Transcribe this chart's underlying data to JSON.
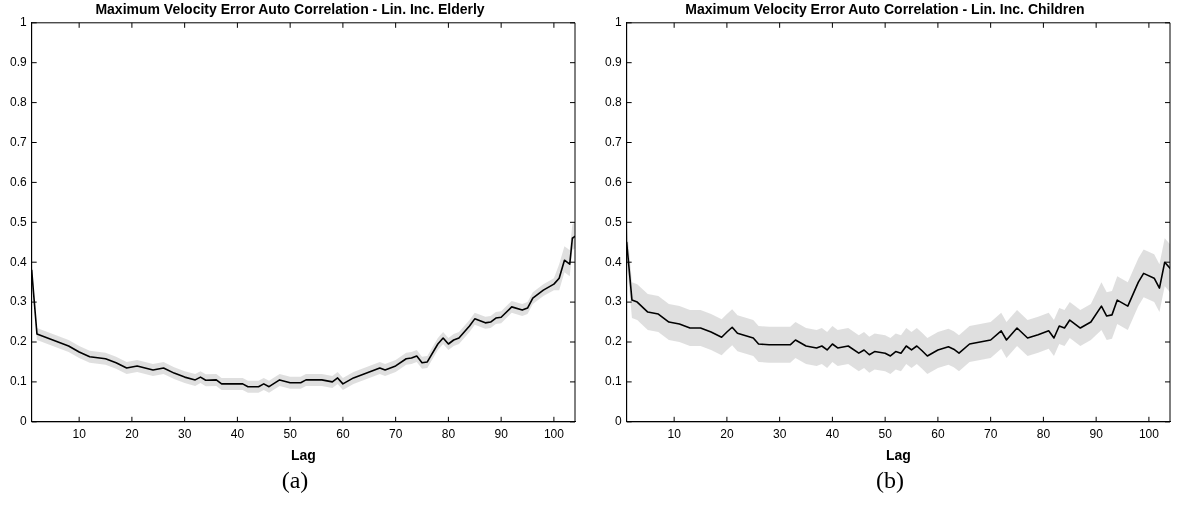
{
  "chart_data": [
    {
      "type": "line",
      "title": "Maximum Velocity Error Auto Correlation - Lin. Inc. Elderly",
      "xlabel": "Lag",
      "annotations": [
        "(a)"
      ],
      "xlim": [
        1,
        104
      ],
      "xticks": [
        10,
        20,
        30,
        40,
        50,
        60,
        70,
        80,
        90,
        100
      ],
      "ylim": [
        0,
        1
      ],
      "yticks": [
        0,
        0.1,
        0.2,
        0.3,
        0.4,
        0.5,
        0.6,
        0.7,
        0.8,
        0.9,
        1
      ],
      "grid": false,
      "marker": "none",
      "line_style": "solid",
      "series": [
        {
          "color": "#000000",
          "x": [
            1,
            1.5,
            2,
            5,
            8,
            10,
            12,
            15,
            17,
            19,
            21,
            24,
            26,
            28,
            30,
            32,
            33,
            34,
            36,
            37,
            41,
            42,
            44,
            45,
            46,
            48,
            50,
            52,
            53,
            56,
            58,
            59,
            60,
            62,
            65,
            67,
            68,
            70,
            72,
            73,
            74,
            75,
            76,
            78,
            79,
            80,
            81,
            82,
            84,
            85,
            87,
            88,
            89,
            90,
            92,
            94,
            95,
            96,
            98,
            100,
            101,
            102,
            103,
            103.5,
            104
          ],
          "values": [
            0.38,
            0.3,
            0.22,
            0.205,
            0.19,
            0.175,
            0.163,
            0.158,
            0.148,
            0.135,
            0.14,
            0.13,
            0.135,
            0.122,
            0.112,
            0.105,
            0.112,
            0.104,
            0.105,
            0.095,
            0.095,
            0.088,
            0.088,
            0.095,
            0.088,
            0.105,
            0.098,
            0.098,
            0.105,
            0.105,
            0.1,
            0.11,
            0.095,
            0.11,
            0.125,
            0.135,
            0.13,
            0.14,
            0.158,
            0.16,
            0.165,
            0.148,
            0.15,
            0.195,
            0.21,
            0.195,
            0.205,
            0.21,
            0.24,
            0.258,
            0.248,
            0.25,
            0.26,
            0.262,
            0.288,
            0.28,
            0.285,
            0.31,
            0.33,
            0.345,
            0.36,
            0.405,
            0.395,
            0.46,
            0.465
          ],
          "lower": [
            0.365,
            0.285,
            0.205,
            0.19,
            0.175,
            0.16,
            0.148,
            0.143,
            0.133,
            0.12,
            0.125,
            0.115,
            0.12,
            0.107,
            0.097,
            0.09,
            0.097,
            0.089,
            0.09,
            0.08,
            0.08,
            0.073,
            0.073,
            0.08,
            0.073,
            0.09,
            0.083,
            0.083,
            0.09,
            0.09,
            0.085,
            0.095,
            0.08,
            0.095,
            0.11,
            0.12,
            0.115,
            0.125,
            0.143,
            0.145,
            0.15,
            0.133,
            0.135,
            0.18,
            0.195,
            0.18,
            0.19,
            0.195,
            0.225,
            0.243,
            0.233,
            0.235,
            0.245,
            0.247,
            0.273,
            0.265,
            0.27,
            0.295,
            0.315,
            0.33,
            0.33,
            0.375,
            0.365,
            0.43,
            0.435
          ],
          "upper": [
            0.395,
            0.315,
            0.235,
            0.22,
            0.205,
            0.19,
            0.178,
            0.173,
            0.163,
            0.15,
            0.155,
            0.145,
            0.15,
            0.137,
            0.127,
            0.12,
            0.127,
            0.119,
            0.12,
            0.11,
            0.11,
            0.103,
            0.103,
            0.11,
            0.103,
            0.12,
            0.113,
            0.113,
            0.12,
            0.12,
            0.115,
            0.125,
            0.11,
            0.125,
            0.14,
            0.15,
            0.145,
            0.155,
            0.173,
            0.175,
            0.18,
            0.163,
            0.165,
            0.21,
            0.225,
            0.21,
            0.22,
            0.225,
            0.255,
            0.273,
            0.263,
            0.265,
            0.275,
            0.277,
            0.303,
            0.295,
            0.3,
            0.325,
            0.345,
            0.36,
            0.395,
            0.44,
            0.43,
            0.495,
            0.5
          ]
        }
      ]
    },
    {
      "type": "line",
      "title": "Maximum Velocity Error Auto Correlation - Lin. Inc. Children",
      "xlabel": "Lag",
      "annotations": [
        "(b)"
      ],
      "xlim": [
        1,
        104
      ],
      "xticks": [
        10,
        20,
        30,
        40,
        50,
        60,
        70,
        80,
        90,
        100
      ],
      "ylim": [
        0,
        1
      ],
      "yticks": [
        0,
        0.1,
        0.2,
        0.3,
        0.4,
        0.5,
        0.6,
        0.7,
        0.8,
        0.9,
        1
      ],
      "grid": false,
      "marker": "none",
      "line_style": "solid",
      "series": [
        {
          "color": "#000000",
          "x": [
            1,
            2,
            3,
            5,
            7,
            8,
            9,
            11,
            13,
            15,
            17,
            19,
            20,
            21,
            22,
            25,
            26,
            28,
            30,
            32,
            33,
            35,
            37,
            38,
            39,
            40,
            41,
            43,
            45,
            46,
            47,
            48,
            50,
            51,
            52,
            53,
            54,
            55,
            56,
            57,
            58,
            60,
            62,
            63,
            64,
            66,
            68,
            70,
            72,
            73,
            75,
            77,
            79,
            81,
            82,
            83,
            84,
            85,
            87,
            89,
            91,
            92,
            93,
            94,
            96,
            97,
            98,
            99,
            101,
            102,
            103,
            104
          ],
          "values": [
            0.45,
            0.305,
            0.3,
            0.275,
            0.27,
            0.26,
            0.25,
            0.245,
            0.235,
            0.235,
            0.225,
            0.212,
            0.225,
            0.237,
            0.222,
            0.21,
            0.195,
            0.193,
            0.193,
            0.193,
            0.205,
            0.19,
            0.185,
            0.19,
            0.18,
            0.195,
            0.185,
            0.19,
            0.172,
            0.18,
            0.168,
            0.176,
            0.172,
            0.165,
            0.176,
            0.172,
            0.19,
            0.18,
            0.19,
            0.178,
            0.165,
            0.18,
            0.188,
            0.182,
            0.172,
            0.195,
            0.2,
            0.205,
            0.228,
            0.205,
            0.235,
            0.21,
            0.218,
            0.228,
            0.21,
            0.24,
            0.235,
            0.255,
            0.235,
            0.25,
            0.29,
            0.265,
            0.268,
            0.305,
            0.29,
            0.32,
            0.35,
            0.372,
            0.36,
            0.335,
            0.4,
            0.385
          ],
          "lower": [
            0.405,
            0.26,
            0.255,
            0.23,
            0.225,
            0.215,
            0.205,
            0.2,
            0.19,
            0.19,
            0.18,
            0.167,
            0.18,
            0.192,
            0.177,
            0.165,
            0.15,
            0.148,
            0.148,
            0.148,
            0.16,
            0.145,
            0.14,
            0.145,
            0.135,
            0.15,
            0.14,
            0.145,
            0.127,
            0.135,
            0.123,
            0.131,
            0.127,
            0.12,
            0.131,
            0.127,
            0.145,
            0.135,
            0.145,
            0.133,
            0.12,
            0.135,
            0.143,
            0.137,
            0.127,
            0.15,
            0.155,
            0.16,
            0.183,
            0.16,
            0.19,
            0.165,
            0.173,
            0.183,
            0.165,
            0.195,
            0.19,
            0.21,
            0.19,
            0.205,
            0.23,
            0.205,
            0.208,
            0.245,
            0.23,
            0.26,
            0.29,
            0.312,
            0.3,
            0.275,
            0.34,
            0.325
          ],
          "upper": [
            0.495,
            0.35,
            0.345,
            0.32,
            0.315,
            0.305,
            0.295,
            0.29,
            0.28,
            0.28,
            0.27,
            0.257,
            0.27,
            0.282,
            0.267,
            0.255,
            0.24,
            0.238,
            0.238,
            0.238,
            0.25,
            0.235,
            0.23,
            0.235,
            0.225,
            0.24,
            0.23,
            0.235,
            0.217,
            0.225,
            0.213,
            0.221,
            0.217,
            0.21,
            0.221,
            0.217,
            0.235,
            0.225,
            0.235,
            0.223,
            0.21,
            0.225,
            0.233,
            0.227,
            0.217,
            0.24,
            0.245,
            0.25,
            0.273,
            0.25,
            0.28,
            0.255,
            0.263,
            0.273,
            0.255,
            0.285,
            0.28,
            0.3,
            0.28,
            0.295,
            0.35,
            0.325,
            0.328,
            0.365,
            0.35,
            0.38,
            0.41,
            0.432,
            0.42,
            0.395,
            0.46,
            0.445
          ]
        }
      ]
    }
  ]
}
